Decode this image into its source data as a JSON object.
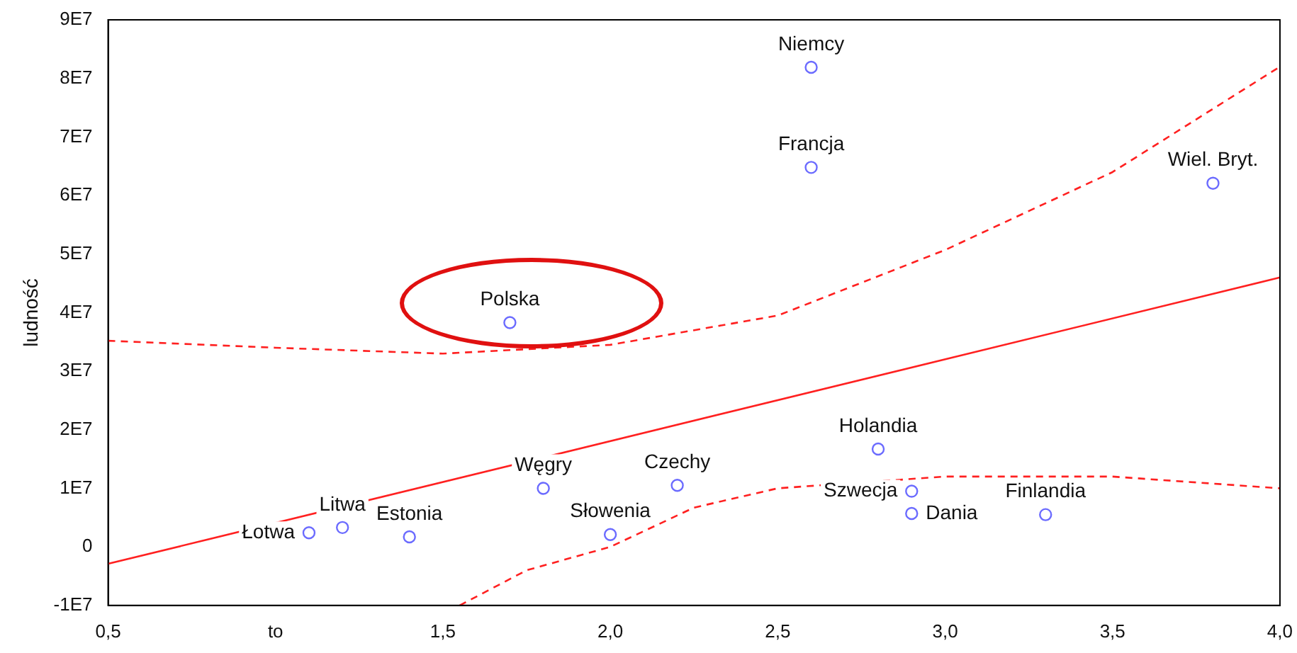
{
  "chart_data": {
    "type": "scatter",
    "ylabel": "ludność",
    "xlim": [
      0.5,
      4.0
    ],
    "ylim": [
      -10000000,
      90000000
    ],
    "xticks": [
      {
        "value": 0.5,
        "label": "0,5"
      },
      {
        "value": 1.0,
        "label": "to"
      },
      {
        "value": 1.5,
        "label": "1,5"
      },
      {
        "value": 2.0,
        "label": "2,0"
      },
      {
        "value": 2.5,
        "label": "2,5"
      },
      {
        "value": 3.0,
        "label": "3,0"
      },
      {
        "value": 3.5,
        "label": "3,5"
      },
      {
        "value": 4.0,
        "label": "4,0"
      }
    ],
    "yticks": [
      {
        "value": -10000000,
        "label": "-1E7"
      },
      0,
      {
        "value": 10000000,
        "label": "1E7"
      },
      {
        "value": 20000000,
        "label": "2E7"
      },
      {
        "value": 30000000,
        "label": "3E7"
      },
      {
        "value": 40000000,
        "label": "4E7"
      },
      {
        "value": 50000000,
        "label": "5E7"
      },
      {
        "value": 60000000,
        "label": "6E7"
      },
      {
        "value": 70000000,
        "label": "7E7"
      },
      {
        "value": 80000000,
        "label": "8E7"
      },
      {
        "value": 90000000,
        "label": "9E7"
      }
    ],
    "grid": false,
    "legend": false,
    "series": [
      {
        "type": "scatter",
        "color": "#6b6bff",
        "marker": "circle",
        "x": [
          1.1,
          1.2,
          1.4,
          1.8,
          2.0,
          2.2,
          1.7,
          2.6,
          2.6,
          2.8,
          2.9,
          2.9,
          3.3,
          3.8
        ],
        "values": [
          2400000,
          3300000,
          1700000,
          10000000,
          2100000,
          10500000,
          38300000,
          64800000,
          81900000,
          16700000,
          9500000,
          5700000,
          5500000,
          62100000
        ]
      },
      {
        "type": "line",
        "color": "#ff2020",
        "line_style": "solid",
        "marker": "none",
        "x": [
          0.5,
          4.0
        ],
        "values": [
          -2900000,
          46000000
        ]
      },
      {
        "type": "line",
        "color": "#ff2020",
        "line_style": "dashed",
        "marker": "none",
        "x": [
          0.5,
          1.0,
          1.5,
          2.0,
          2.5,
          3.0,
          3.5,
          4.0
        ],
        "values": [
          35200000,
          34000000,
          33000000,
          34500000,
          39500000,
          50700000,
          64000000,
          82000000
        ]
      },
      {
        "type": "line",
        "color": "#ff2020",
        "line_style": "dashed",
        "marker": "none",
        "x": [
          1.55,
          1.75,
          2.0,
          2.25,
          2.5,
          3.0,
          3.5,
          4.0
        ],
        "values": [
          -10000000,
          -4000000,
          0,
          6700000,
          10000000,
          12000000,
          12000000,
          10000000
        ]
      }
    ],
    "annotations": [
      {
        "text": "Łotwa",
        "x": 1.1,
        "y": 2400000
      },
      {
        "text": "Litwa",
        "x": 1.2,
        "y": 3300000
      },
      {
        "text": "Estonia",
        "x": 1.4,
        "y": 1700000
      },
      {
        "text": "Węgry",
        "x": 1.8,
        "y": 10000000
      },
      {
        "text": "Słowenia",
        "x": 2.0,
        "y": 2100000
      },
      {
        "text": "Czechy",
        "x": 2.2,
        "y": 10500000
      },
      {
        "text": "Polska",
        "x": 1.7,
        "y": 38300000
      },
      {
        "text": "Francja",
        "x": 2.6,
        "y": 64800000
      },
      {
        "text": "Niemcy",
        "x": 2.6,
        "y": 81900000
      },
      {
        "text": "Holandia",
        "x": 2.8,
        "y": 16700000
      },
      {
        "text": "Szwecja",
        "x": 2.9,
        "y": 9500000
      },
      {
        "text": "Dania",
        "x": 2.9,
        "y": 5700000
      },
      {
        "text": "Finlandia",
        "x": 3.3,
        "y": 5500000
      },
      {
        "text": "Wiel. Bryt.",
        "x": 3.8,
        "y": 62100000
      }
    ]
  }
}
